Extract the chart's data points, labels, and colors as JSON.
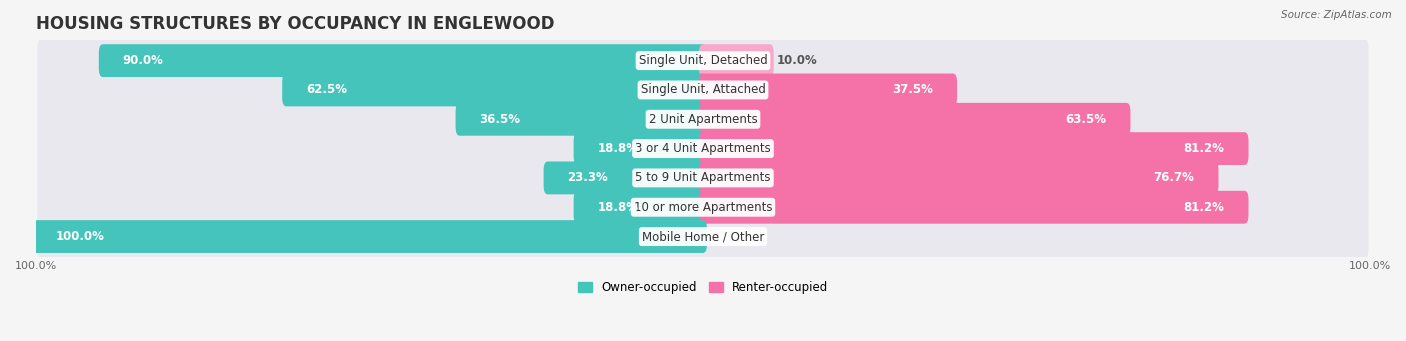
{
  "title": "HOUSING STRUCTURES BY OCCUPANCY IN ENGLEWOOD",
  "source": "Source: ZipAtlas.com",
  "categories": [
    "Single Unit, Detached",
    "Single Unit, Attached",
    "2 Unit Apartments",
    "3 or 4 Unit Apartments",
    "5 to 9 Unit Apartments",
    "10 or more Apartments",
    "Mobile Home / Other"
  ],
  "owner_pct": [
    90.0,
    62.5,
    36.5,
    18.8,
    23.3,
    18.8,
    100.0
  ],
  "renter_pct": [
    10.0,
    37.5,
    63.5,
    81.2,
    76.7,
    81.2,
    0.0
  ],
  "owner_color": "#45C4BC",
  "renter_color": "#F472A8",
  "renter_color_light": "#F8A8C8",
  "bg_color": "#f5f5f5",
  "row_bg": "#e8e8ee",
  "title_fontsize": 12,
  "label_fontsize": 8.5,
  "pct_fontsize": 8.5,
  "tick_fontsize": 8,
  "legend_fontsize": 8.5,
  "source_fontsize": 7.5
}
